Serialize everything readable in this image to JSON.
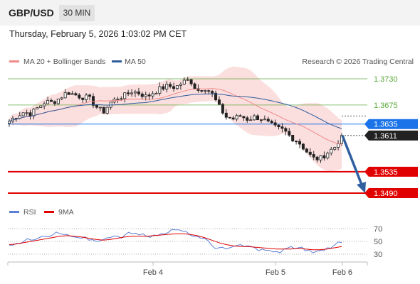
{
  "header": {
    "symbol": "GBP/USD",
    "timeframe": "30 MIN"
  },
  "datetime": "Thursday, February 5, 2026 1:03:02 PM CET",
  "chart_data": {
    "type": "candlestick",
    "legend": [
      {
        "label": "MA 20 + Bollinger Bands",
        "color": "#f08a8a"
      },
      {
        "label": "MA 50",
        "color": "#2e5c9a"
      }
    ],
    "credit": "Research © 2026 Trading Central",
    "levels": [
      {
        "value": 1.373,
        "label": "1.3730",
        "type": "resistance",
        "color": "#5aa83a"
      },
      {
        "value": 1.3675,
        "label": "1.3675",
        "type": "resistance",
        "color": "#5aa83a"
      },
      {
        "value": 1.3635,
        "label": "1.3635",
        "type": "pivot",
        "color": "#1a73e8"
      },
      {
        "value": 1.3611,
        "label": "1.3611",
        "type": "last",
        "color": "#222222"
      },
      {
        "value": 1.3535,
        "label": "1.3535",
        "type": "support",
        "color": "#e00000"
      },
      {
        "value": 1.349,
        "label": "1.3490",
        "type": "support",
        "color": "#e00000"
      }
    ],
    "price_path": [
      1.3641,
      1.3652,
      1.366,
      1.3657,
      1.367,
      1.3682,
      1.368,
      1.369,
      1.3702,
      1.3697,
      1.3692,
      1.369,
      1.3672,
      1.366,
      1.368,
      1.369,
      1.3695,
      1.3704,
      1.37,
      1.3692,
      1.3702,
      1.371,
      1.3715,
      1.3712,
      1.3723,
      1.3728,
      1.3705,
      1.3712,
      1.37,
      1.3672,
      1.365,
      1.3646,
      1.3652,
      1.3645,
      1.365,
      1.3646,
      1.3635,
      1.3626,
      1.3622,
      1.3607,
      1.3598,
      1.358,
      1.3563,
      1.3562,
      1.3575,
      1.3586,
      1.3611
    ],
    "projection": {
      "from": 1.3611,
      "to": 1.349
    },
    "x_labels": [
      "Feb 4",
      "Feb 5",
      "Feb 6"
    ],
    "rsi": {
      "legend": [
        {
          "label": "RSI",
          "color": "#5b7fd6"
        },
        {
          "label": "9MA",
          "color": "#e00000"
        }
      ],
      "ticks": [
        70,
        50,
        30
      ],
      "values": [
        44,
        47,
        50,
        52,
        55,
        58,
        60,
        62,
        61,
        57,
        55,
        52,
        50,
        53,
        56,
        58,
        60,
        62,
        60,
        58,
        60,
        62,
        64,
        68,
        66,
        60,
        58,
        55,
        44,
        40,
        38,
        42,
        45,
        43,
        40,
        38,
        36,
        34,
        38,
        42,
        40,
        35,
        32,
        36,
        40,
        44,
        48
      ],
      "ma": [
        45,
        46,
        48,
        50,
        52,
        54,
        56,
        58,
        59,
        58,
        57,
        55,
        53,
        52,
        53,
        55,
        57,
        58,
        58,
        58,
        59,
        60,
        61,
        62,
        62,
        61,
        59,
        56,
        52,
        48,
        45,
        43,
        42,
        42,
        41,
        40,
        39,
        38,
        38,
        38,
        39,
        38,
        37,
        37,
        38,
        40,
        42
      ]
    }
  }
}
